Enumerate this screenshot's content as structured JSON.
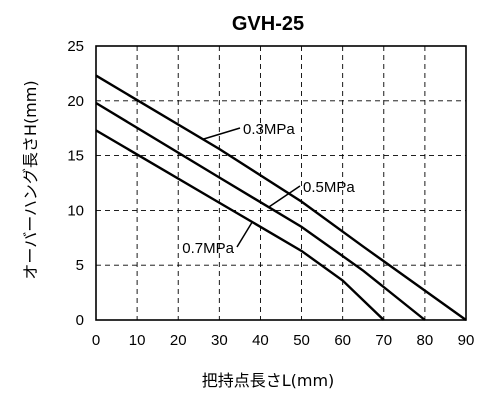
{
  "chart_data": {
    "type": "line",
    "title": "GVH-25",
    "xlabel": "把持点長さL(mm)",
    "ylabel": "オーバーハング長さH(mm)",
    "xlim": [
      0,
      90
    ],
    "ylim": [
      0,
      25
    ],
    "xticks": [
      0,
      10,
      20,
      30,
      40,
      50,
      60,
      70,
      80,
      90
    ],
    "yticks": [
      0,
      5,
      10,
      15,
      20,
      25
    ],
    "grid": true,
    "series": [
      {
        "name": "0.3MPa",
        "x": [
          0,
          30,
          50,
          65,
          90
        ],
        "y": [
          22.3,
          15.6,
          10.8,
          6.7,
          0
        ]
      },
      {
        "name": "0.5MPa",
        "x": [
          0,
          30,
          50,
          65,
          80
        ],
        "y": [
          19.8,
          13.0,
          8.5,
          4.5,
          0
        ]
      },
      {
        "name": "0.7MPa",
        "x": [
          0,
          30,
          50,
          60,
          70
        ],
        "y": [
          17.3,
          10.7,
          6.3,
          3.6,
          0
        ]
      }
    ],
    "annotations": [
      {
        "text": "0.3MPa",
        "series": "0.3MPa",
        "x": 30,
        "y": 16.8
      },
      {
        "text": "0.5MPa",
        "series": "0.5MPa",
        "x": 45,
        "y": 11.3
      },
      {
        "text": "0.7MPa",
        "series": "0.7MPa",
        "x": 36,
        "y": 6.5
      }
    ]
  }
}
